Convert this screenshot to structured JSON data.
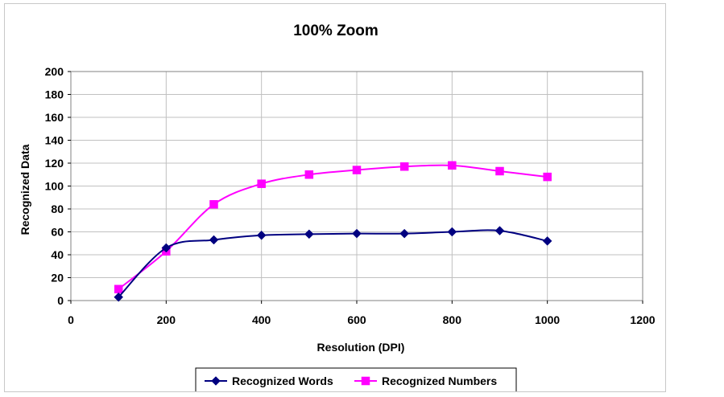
{
  "chart_data": {
    "type": "line",
    "title": "100% Zoom",
    "xlabel": "Resolution (DPI)",
    "ylabel": "Recognized Data",
    "xlim": [
      0,
      1200
    ],
    "ylim": [
      0,
      200
    ],
    "xticks": [
      0,
      200,
      400,
      600,
      800,
      1000,
      1200
    ],
    "yticks": [
      0,
      20,
      40,
      60,
      80,
      100,
      120,
      140,
      160,
      180,
      200
    ],
    "grid": true,
    "smooth": true,
    "legend": "bottom",
    "series": [
      {
        "name": "Recognized Words",
        "color": "#000080",
        "marker": "diamond",
        "x": [
          100,
          200,
          300,
          400,
          500,
          600,
          700,
          800,
          900,
          1000
        ],
        "y": [
          3,
          46,
          53,
          57,
          58,
          58.5,
          58.5,
          60,
          61,
          52
        ]
      },
      {
        "name": "Recognized Numbers",
        "color": "#ff00ff",
        "marker": "square",
        "x": [
          100,
          200,
          300,
          400,
          500,
          600,
          700,
          800,
          900,
          1000
        ],
        "y": [
          10,
          43,
          84,
          102,
          110,
          114,
          117,
          118,
          113,
          108
        ]
      }
    ]
  }
}
